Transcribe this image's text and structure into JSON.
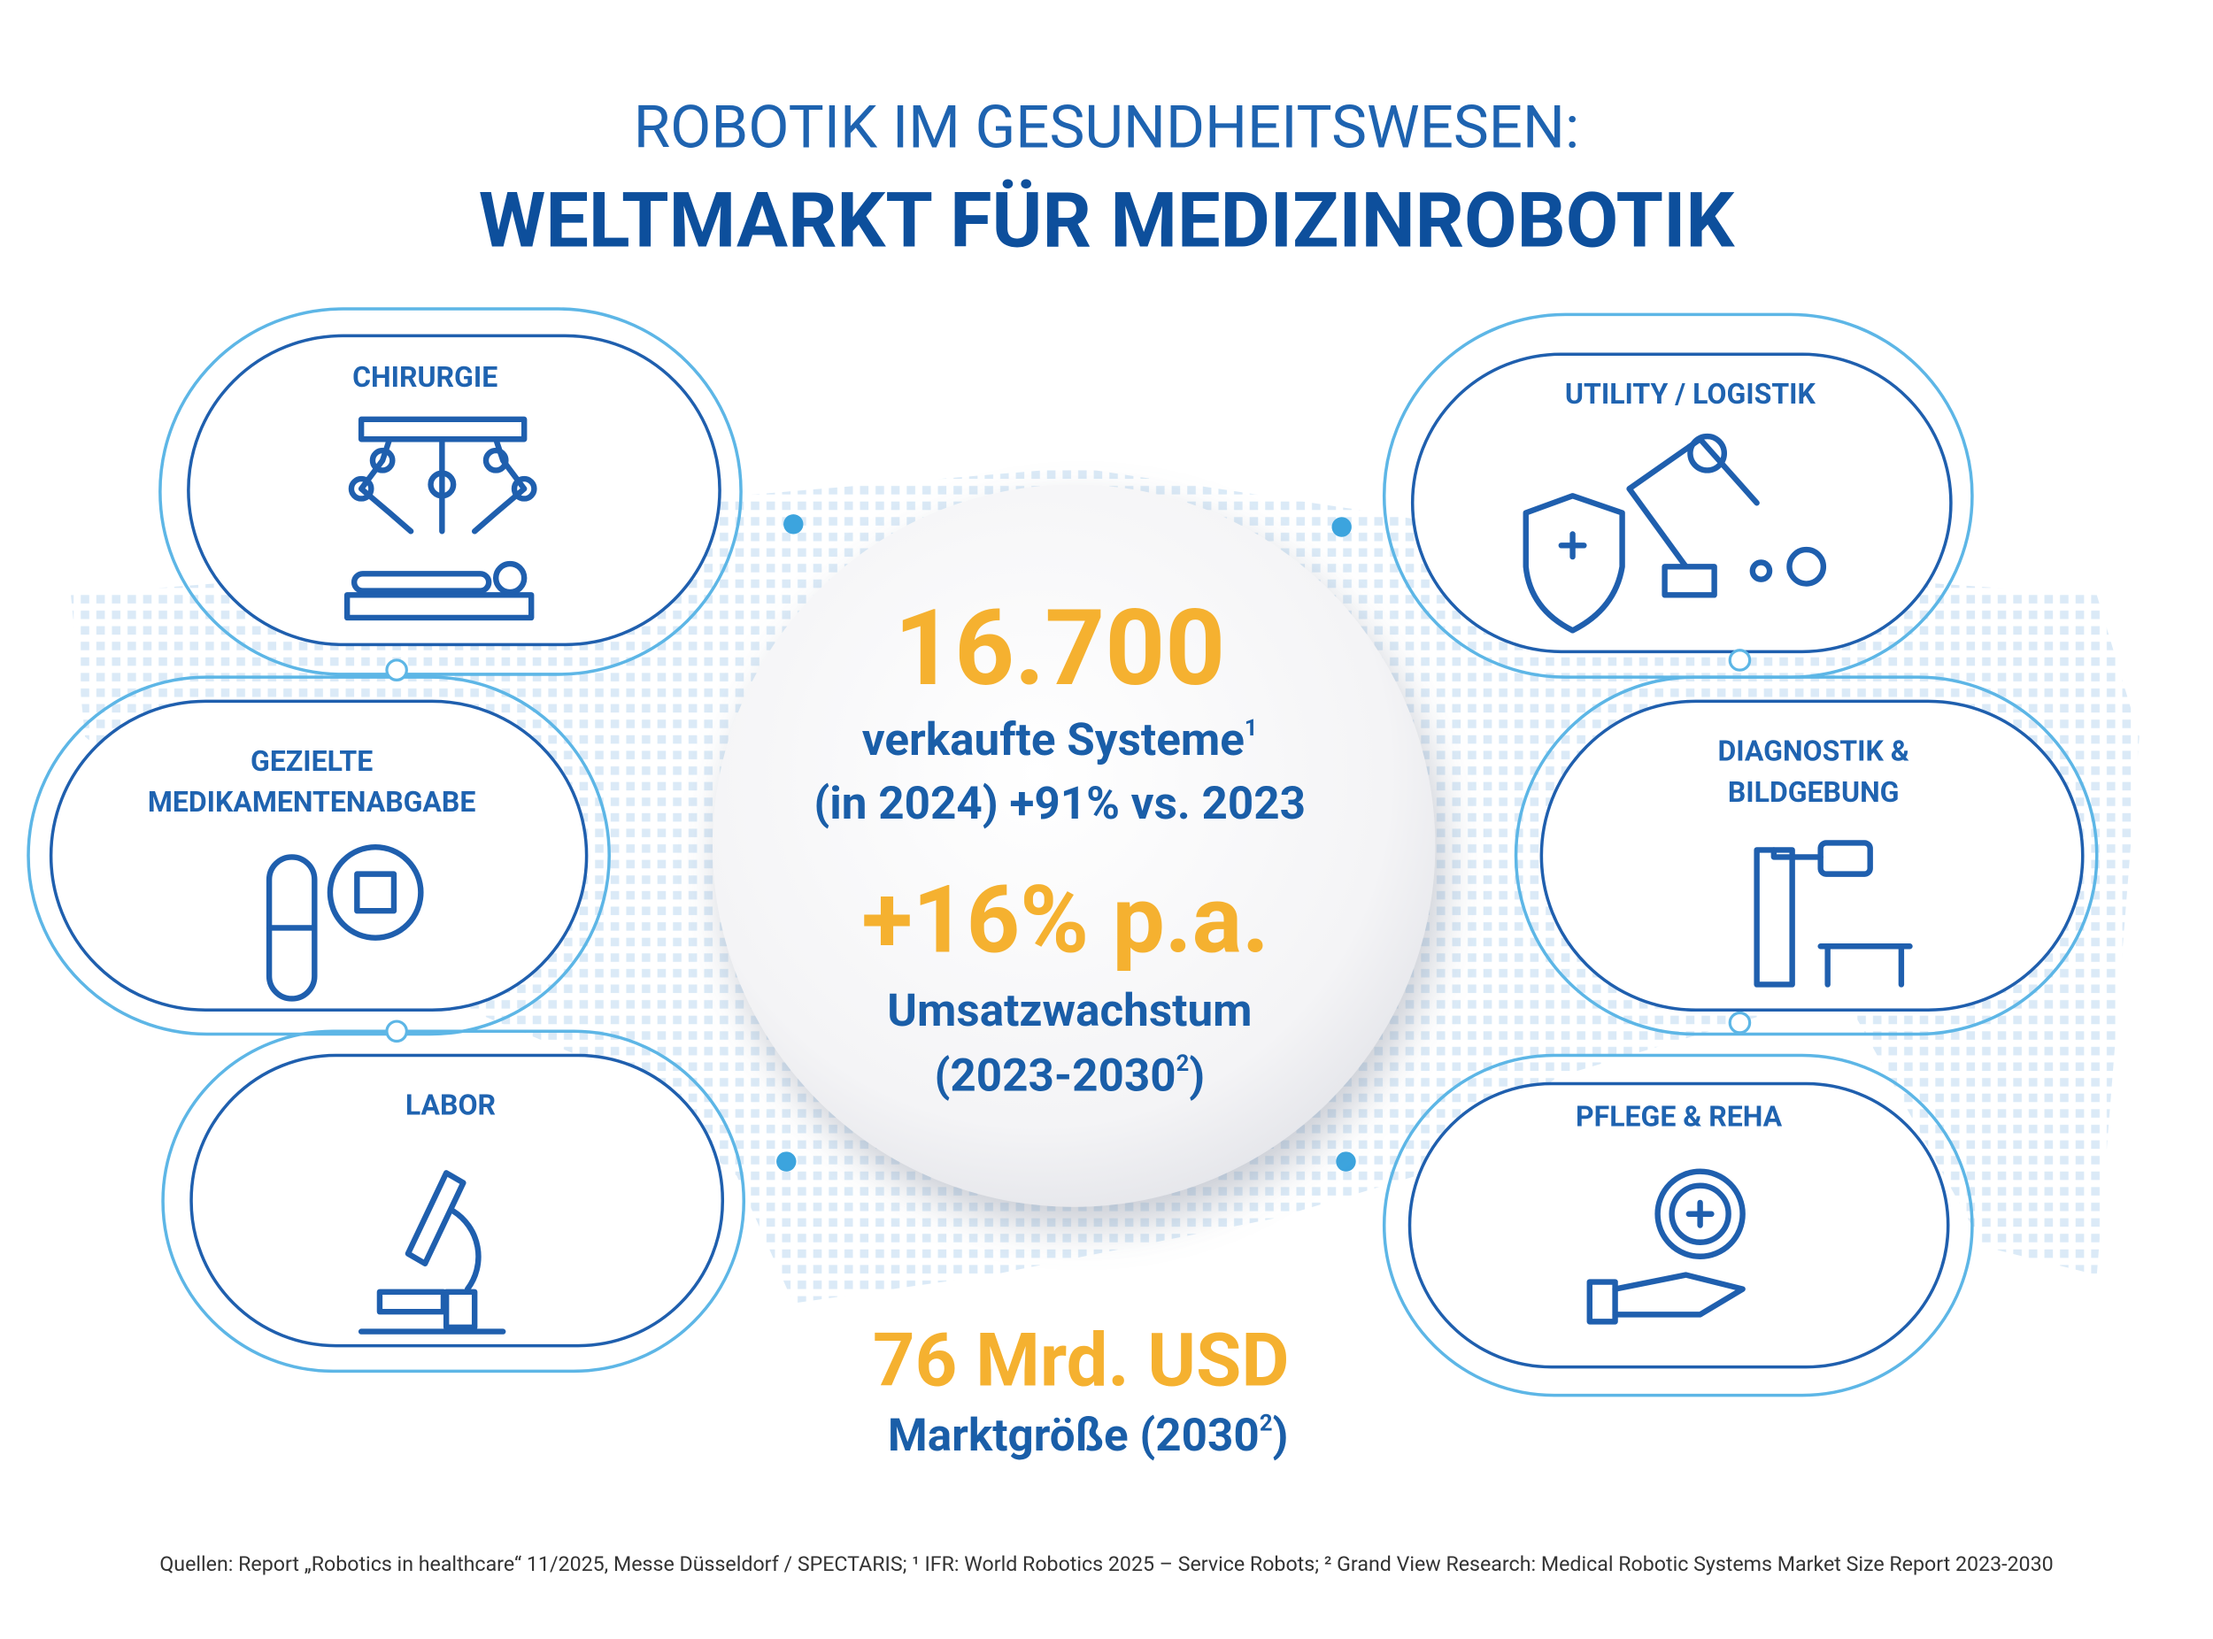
{
  "header": {
    "title_line1": "ROBOTIK IM GESUNDHEITSWESEN:",
    "title_line2": "WELTMARKT FÜR MEDIZINROBOTIK"
  },
  "categories": [
    {
      "line1": "CHIRURGIE"
    },
    {
      "line1": "GEZIELTE",
      "line2": "MEDIKAMENTENABGABE"
    },
    {
      "line1": "LABOR"
    },
    {
      "line1": "UTILITY / LOGISTIK"
    },
    {
      "line1": "DIAGNOSTIK &",
      "line2": "BILDGEBUNG"
    },
    {
      "line1": "PFLEGE & REHA"
    }
  ],
  "center": {
    "systems_value": "16.700",
    "systems_label": "verkaufte Systeme",
    "systems_label_sup": "1",
    "systems_detail": "(in 2024) +91% vs. 2023",
    "growth_value": "+16% p.a.",
    "growth_label": "Umsatzwachstum",
    "growth_period": "(2023-2030",
    "growth_period_sup": "2",
    "growth_period_end": ")"
  },
  "market": {
    "value": "76 Mrd. USD",
    "label": "Marktgröße (2030",
    "label_sup": "2",
    "label_end": ")"
  },
  "footer": {
    "sources": "Quellen: Report „Robotics in healthcare“ 11/2025, Messe Düsseldorf / SPECTARIS; ¹ IFR: World Robotics 2025 – Service Robots; ² Grand View Research: Medical Robotic Systems Market Size Report 2023-2030"
  }
}
